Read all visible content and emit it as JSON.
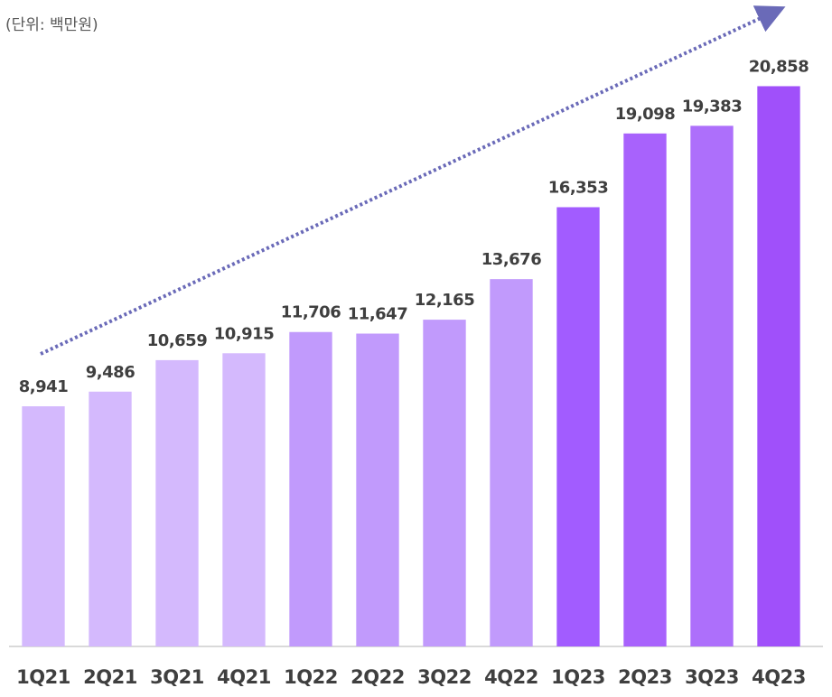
{
  "chart_data": {
    "type": "bar",
    "unit_label": "(단위: 백만원)",
    "categories": [
      "1Q21",
      "2Q21",
      "3Q21",
      "4Q21",
      "1Q22",
      "2Q22",
      "3Q22",
      "4Q22",
      "1Q23",
      "2Q23",
      "3Q23",
      "4Q23"
    ],
    "values": [
      8941,
      9486,
      10659,
      10915,
      11706,
      11647,
      12165,
      13676,
      16353,
      19098,
      19383,
      20858
    ],
    "value_labels": [
      "8,941",
      "9,486",
      "10,659",
      "10,915",
      "11,706",
      "11,647",
      "12,165",
      "13,676",
      "16,353",
      "19,098",
      "19,383",
      "20,858"
    ],
    "colors": [
      "#d4b9fd",
      "#d4b9fd",
      "#d4b9fd",
      "#d4b9fd",
      "#c19afc",
      "#c19afc",
      "#c19afc",
      "#c19afc",
      "#a25cff",
      "#a862fc",
      "#ad6ffb",
      "#a050fa"
    ],
    "ylim": [
      0,
      24000
    ]
  }
}
